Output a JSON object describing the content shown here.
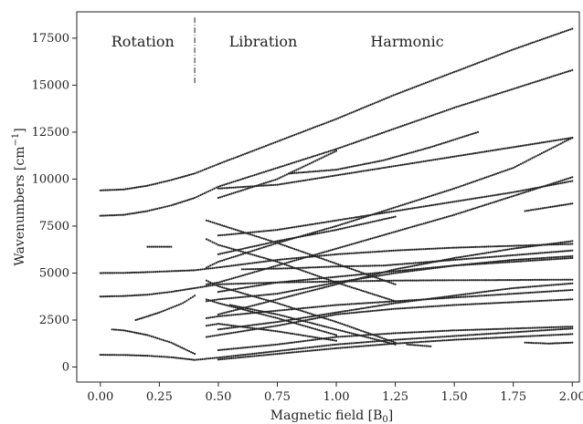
{
  "chart_data": {
    "type": "scatter",
    "title": "",
    "xlabel": "Magnetic field [B",
    "xlabel_sub": "0",
    "xlabel_end": "]",
    "ylabel": "Wavenumbers [cm",
    "ylabel_sup": "−1",
    "ylabel_end": "]",
    "xlim": [
      -0.1,
      2.03
    ],
    "ylim": [
      -800,
      18900
    ],
    "x_ticks": [
      0.0,
      0.25,
      0.5,
      0.75,
      1.0,
      1.25,
      1.5,
      1.75,
      2.0
    ],
    "x_tick_labels": [
      "0.00",
      "0.25",
      "0.50",
      "0.75",
      "1.00",
      "1.25",
      "1.50",
      "1.75",
      "2.00"
    ],
    "y_ticks": [
      0,
      2500,
      5000,
      7500,
      10000,
      12500,
      15000,
      17500
    ],
    "y_tick_labels": [
      "0",
      "2500",
      "5000",
      "7500",
      "10000",
      "12500",
      "15000",
      "17500"
    ],
    "grid": false,
    "legend": "none",
    "marker_color": "#222222",
    "region_labels": [
      {
        "text": "Rotation",
        "x": 0.18
      },
      {
        "text": "Libration",
        "x": 0.69
      },
      {
        "text": "Harmonic",
        "x": 1.3
      }
    ],
    "divider_x": 0.4,
    "series": [
      {
        "x": [
          0,
          0.1,
          0.2,
          0.3,
          0.4,
          0.5,
          0.75,
          1,
          1.25,
          1.5,
          1.75,
          2
        ],
        "y": [
          650,
          640,
          600,
          520,
          380,
          500,
          850,
          1200,
          1450,
          1650,
          1850,
          2050
        ]
      },
      {
        "x": [
          0.05,
          0.1,
          0.2,
          0.3,
          0.4
        ],
        "y": [
          2000,
          1950,
          1700,
          1300,
          700
        ]
      },
      {
        "x": [
          0.15,
          0.25,
          0.35,
          0.4
        ],
        "y": [
          2500,
          2900,
          3400,
          3800
        ]
      },
      {
        "x": [
          0,
          0.1,
          0.2,
          0.3,
          0.4,
          0.5,
          0.75,
          1,
          1.25,
          1.5,
          1.75,
          2
        ],
        "y": [
          3750,
          3780,
          3850,
          4000,
          4200,
          4400,
          4500,
          4550,
          4600,
          4620,
          4630,
          4650
        ]
      },
      {
        "x": [
          0,
          0.1,
          0.2,
          0.3,
          0.4,
          0.5,
          0.75,
          1,
          1.25,
          1.5,
          1.75,
          2
        ],
        "y": [
          5000,
          5010,
          5050,
          5100,
          5150,
          5300,
          5700,
          6000,
          6200,
          6350,
          6450,
          6550
        ]
      },
      {
        "x": [
          0,
          0.1,
          0.2,
          0.3,
          0.4,
          0.5,
          0.75,
          1,
          1.25,
          1.5,
          1.75,
          2
        ],
        "y": [
          8050,
          8100,
          8300,
          8600,
          9000,
          9600,
          10600,
          11600,
          12700,
          13800,
          14800,
          15800
        ]
      },
      {
        "x": [
          0,
          0.1,
          0.2,
          0.3,
          0.4,
          0.5,
          0.75,
          1,
          1.25,
          1.5,
          1.75,
          2
        ],
        "y": [
          9400,
          9450,
          9650,
          9950,
          10300,
          10800,
          12000,
          13200,
          14500,
          15700,
          16900,
          18000
        ]
      },
      {
        "x": [
          0.45,
          0.5,
          0.75,
          1,
          1.25,
          1.5,
          1.75,
          2
        ],
        "y": [
          4400,
          4500,
          5400,
          6300,
          7200,
          8100,
          9100,
          10100
        ]
      },
      {
        "x": [
          0.45,
          0.5,
          0.75,
          1,
          1.25,
          1.5,
          1.75,
          2
        ],
        "y": [
          5300,
          5600,
          6600,
          7500,
          8500,
          9500,
          10600,
          12200
        ]
      },
      {
        "x": [
          0.45,
          0.5,
          0.75,
          1,
          1.25,
          1.5,
          1.75,
          2
        ],
        "y": [
          3500,
          3600,
          3900,
          4500,
          5000,
          5400,
          5700,
          5900
        ]
      },
      {
        "x": [
          0.45,
          0.5,
          0.75,
          1,
          1.25,
          1.5,
          1.75,
          2
        ],
        "y": [
          2600,
          2700,
          3000,
          3300,
          3500,
          3700,
          3900,
          4100
        ]
      },
      {
        "x": [
          0.45,
          0.5,
          0.75,
          1,
          1.25,
          1.5,
          1.75,
          2
        ],
        "y": [
          1600,
          1700,
          2200,
          2800,
          3100,
          3300,
          3450,
          3600
        ]
      },
      {
        "x": [
          0.45,
          0.5,
          0.75,
          1,
          1.25
        ],
        "y": [
          4600,
          4300,
          3400,
          2400,
          1300
        ]
      },
      {
        "x": [
          0.45,
          0.5,
          0.75,
          1
        ],
        "y": [
          3600,
          3400,
          2600,
          1700
        ]
      },
      {
        "x": [
          0.45,
          0.5,
          0.75,
          1
        ],
        "y": [
          2200,
          2300,
          1900,
          1400
        ]
      },
      {
        "x": [
          0.45,
          0.5,
          0.75,
          1,
          1.25
        ],
        "y": [
          6800,
          6500,
          5600,
          4500,
          3500
        ]
      },
      {
        "x": [
          0.45,
          0.5,
          0.75,
          1,
          1.25
        ],
        "y": [
          7800,
          7600,
          6600,
          5500,
          4400
        ]
      },
      {
        "x": [
          0.5,
          0.75,
          1,
          1.25,
          1.5,
          1.75,
          2
        ],
        "y": [
          2000,
          2400,
          2900,
          3400,
          3800,
          4200,
          4450
        ]
      },
      {
        "x": [
          0.5,
          0.75,
          1,
          1.25,
          1.5,
          1.75,
          2
        ],
        "y": [
          2800,
          3600,
          4400,
          5200,
          5800,
          6300,
          6700
        ]
      },
      {
        "x": [
          0.5,
          0.75,
          1,
          1.25,
          1.5,
          1.75,
          2
        ],
        "y": [
          4000,
          4500,
          4800,
          5100,
          5400,
          5600,
          5800
        ]
      },
      {
        "x": [
          0.5,
          0.75,
          1,
          1.25,
          1.5,
          1.75,
          2
        ],
        "y": [
          900,
          1200,
          1600,
          1800,
          1950,
          2050,
          2150
        ]
      },
      {
        "x": [
          0.5,
          0.75,
          1,
          1.25,
          1.5,
          1.75,
          2
        ],
        "y": [
          400,
          700,
          1000,
          1250,
          1450,
          1600,
          1750
        ]
      },
      {
        "x": [
          0.5,
          0.75,
          1,
          1.25
        ],
        "y": [
          6000,
          6700,
          7300,
          8000
        ]
      },
      {
        "x": [
          0.5,
          0.75,
          1,
          1.25,
          1.5,
          1.75,
          2
        ],
        "y": [
          9500,
          9700,
          10200,
          10700,
          11200,
          11700,
          12200
        ]
      },
      {
        "x": [
          0.5,
          0.75,
          1,
          1.25,
          1.5,
          1.75,
          2
        ],
        "y": [
          7000,
          7300,
          7800,
          8300,
          8800,
          9300,
          9900
        ]
      },
      {
        "x": [
          0.5,
          0.75,
          1
        ],
        "y": [
          9000,
          10000,
          11500
        ]
      },
      {
        "x": [
          0.55,
          0.75,
          1,
          1.25
        ],
        "y": [
          3300,
          2800,
          2000,
          1200
        ]
      },
      {
        "x": [
          0.6,
          0.8,
          1,
          1.2,
          1.4,
          1.6,
          1.8,
          2
        ],
        "y": [
          5200,
          5250,
          5350,
          5400,
          5600,
          5800,
          6000,
          6200
        ]
      },
      {
        "x": [
          0.8,
          1,
          1.2,
          1.4,
          1.6
        ],
        "y": [
          10300,
          10500,
          11000,
          11700,
          12500
        ]
      },
      {
        "x": [
          0.2,
          0.25,
          0.3
        ],
        "y": [
          6400,
          6400,
          6400
        ]
      },
      {
        "x": [
          1.8,
          1.9,
          2
        ],
        "y": [
          8300,
          8500,
          8700
        ]
      },
      {
        "x": [
          1.8,
          1.9,
          2
        ],
        "y": [
          1300,
          1250,
          1300
        ]
      },
      {
        "x": [
          1.3,
          1.35,
          1.4
        ],
        "y": [
          1200,
          1150,
          1100
        ]
      }
    ]
  }
}
